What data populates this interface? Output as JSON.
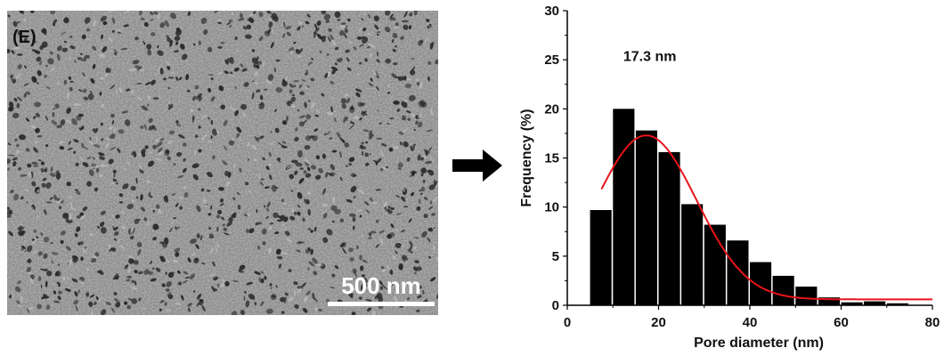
{
  "sem": {
    "panel_label": "(E)",
    "scale_bar_label": "500 nm",
    "scale_bar_length_nm": 500
  },
  "colors": {
    "bar": "#000000",
    "fit_curve": "#e8141c",
    "sem_base": "#8c8c8c",
    "pore": "#2a2a2a"
  },
  "chart_data": {
    "type": "bar",
    "xlabel": "Pore diameter (nm)",
    "ylabel": "Frequency (%)",
    "xlim": [
      0,
      80
    ],
    "ylim": [
      0,
      30
    ],
    "xticks": [
      0,
      20,
      40,
      60,
      80
    ],
    "yticks": [
      0,
      5,
      10,
      15,
      20,
      25,
      30
    ],
    "bin_width": 5,
    "x": [
      7.5,
      12.5,
      17.5,
      22.5,
      27.5,
      32.5,
      37.5,
      42.5,
      47.5,
      52.5,
      57.5,
      62.5,
      67.5,
      72.5
    ],
    "values": [
      9.7,
      20.0,
      17.8,
      15.6,
      10.3,
      8.2,
      6.6,
      4.4,
      3.0,
      1.9,
      0.8,
      0.3,
      0.4,
      0.2
    ],
    "fit": {
      "type": "gaussian",
      "peak_label": "17.3 nm",
      "center": 17.3,
      "amplitude": 16.7,
      "sigma": 11,
      "baseline": 0.6,
      "x_start": 7.5,
      "x_end": 80
    },
    "grid": false,
    "legend": "none"
  }
}
